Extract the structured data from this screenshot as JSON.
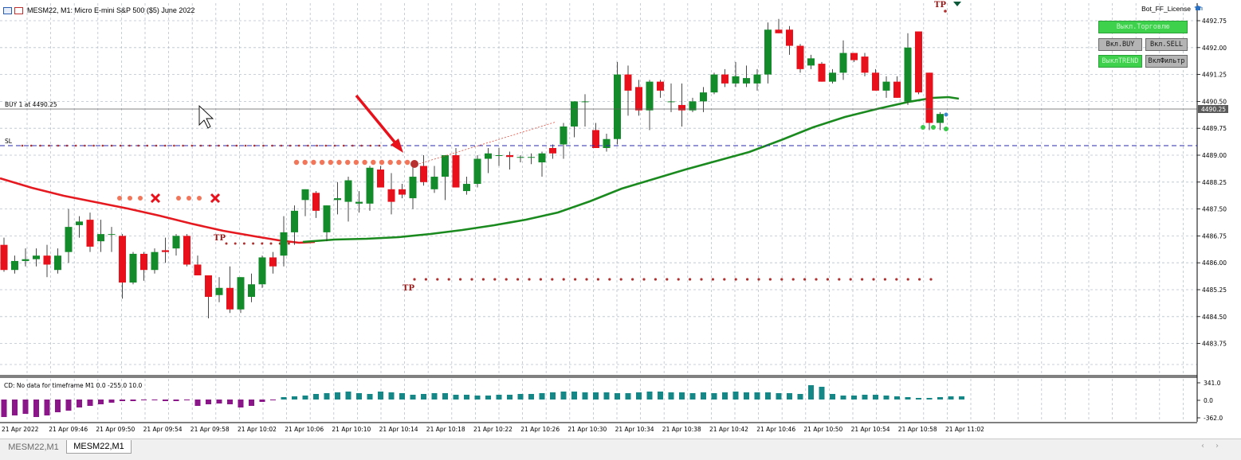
{
  "window": {
    "title": "MESM22, M1:  Micro E-mini S&P 500 ($5) June 2022"
  },
  "price_axis": {
    "labels": [
      "4492.75",
      "4492.00",
      "4491.25",
      "4490.50",
      "4489.75",
      "4489.00",
      "4488.25",
      "4487.50",
      "4486.75",
      "4486.00",
      "4485.25",
      "4484.50",
      "4483.75"
    ],
    "current_price": "4490.25"
  },
  "time_axis": {
    "labels": [
      "21 Apr 2022",
      "21 Apr 09:46",
      "21 Apr 09:50",
      "21 Apr 09:54",
      "21 Apr 09:58",
      "21 Apr 10:02",
      "21 Apr 10:06",
      "21 Apr 10:10",
      "21 Apr 10:14",
      "21 Apr 10:18",
      "21 Apr 10:22",
      "21 Apr 10:26",
      "21 Apr 10:30",
      "21 Apr 10:34",
      "21 Apr 10:38",
      "21 Apr 10:42",
      "21 Apr 10:46",
      "21 Apr 10:50",
      "21 Apr 10:54",
      "21 Apr 10:58",
      "21 Apr 11:02"
    ]
  },
  "trade_lines": {
    "buy_label": "BUY 1 at 4490.25",
    "sl_label": "SL",
    "tp_label": "TP"
  },
  "indicator": {
    "header": "CD: No data for timeframe M1 0.0 -255.0 10.0",
    "scale": [
      "341.0",
      "0.0",
      "-362.0"
    ]
  },
  "panel": {
    "license": "Bot_FF_License",
    "buttons": {
      "trade_off": "Выкл.Торговлю",
      "buy_on": "Вкл.BUY",
      "sell_on": "Вкл.SELL",
      "trend_off": "ВыклTREND",
      "filter_on": "ВклФильтр"
    }
  },
  "tabs": [
    "MESM22,M1",
    "MESM22,M1"
  ],
  "colors": {
    "bull": "#148b2b",
    "bear": "#e8101a",
    "grid": "#b8c2cc",
    "ma_red": "#e5191f",
    "ma_green": "#1a8a1f",
    "hist_pos": "#168787",
    "hist_neg": "#8a168a"
  },
  "chart_data": {
    "type": "candlestick",
    "candles": [
      {
        "o": 4486.5,
        "h": 4486.7,
        "l": 4485.75,
        "c": 4485.8
      },
      {
        "o": 4485.8,
        "h": 4486.2,
        "l": 4485.7,
        "c": 4486.05
      },
      {
        "o": 4486.05,
        "h": 4486.4,
        "l": 4485.9,
        "c": 4486.1
      },
      {
        "o": 4486.1,
        "h": 4486.4,
        "l": 4485.9,
        "c": 4486.2
      },
      {
        "o": 4486.2,
        "h": 4486.5,
        "l": 4485.6,
        "c": 4485.95
      },
      {
        "o": 4485.8,
        "h": 4486.4,
        "l": 4485.7,
        "c": 4486.2
      },
      {
        "o": 4486.3,
        "h": 4487.5,
        "l": 4486.0,
        "c": 4487.0
      },
      {
        "o": 4487.05,
        "h": 4487.3,
        "l": 4486.7,
        "c": 4487.15
      },
      {
        "o": 4487.2,
        "h": 4487.4,
        "l": 4486.3,
        "c": 4486.45
      },
      {
        "o": 4486.6,
        "h": 4487.2,
        "l": 4486.3,
        "c": 4486.8
      },
      {
        "o": 4486.8,
        "h": 4487.0,
        "l": 4486.3,
        "c": 4486.8
      },
      {
        "o": 4486.75,
        "h": 4486.8,
        "l": 4485.0,
        "c": 4485.45
      },
      {
        "o": 4485.45,
        "h": 4486.3,
        "l": 4485.4,
        "c": 4486.25
      },
      {
        "o": 4486.25,
        "h": 4486.3,
        "l": 4485.5,
        "c": 4485.8
      },
      {
        "o": 4485.8,
        "h": 4486.4,
        "l": 4485.7,
        "c": 4486.3
      },
      {
        "o": 4486.35,
        "h": 4486.7,
        "l": 4486.0,
        "c": 4486.3
      },
      {
        "o": 4486.4,
        "h": 4486.8,
        "l": 4486.2,
        "c": 4486.75
      },
      {
        "o": 4486.75,
        "h": 4486.8,
        "l": 4485.9,
        "c": 4485.95
      },
      {
        "o": 4485.95,
        "h": 4486.2,
        "l": 4485.65,
        "c": 4485.65
      },
      {
        "o": 4485.65,
        "h": 4485.65,
        "l": 4484.45,
        "c": 4485.05
      },
      {
        "o": 4485.1,
        "h": 4485.6,
        "l": 4484.9,
        "c": 4485.3
      },
      {
        "o": 4485.3,
        "h": 4485.9,
        "l": 4484.6,
        "c": 4484.7
      },
      {
        "o": 4484.7,
        "h": 4485.6,
        "l": 4484.6,
        "c": 4485.6
      },
      {
        "o": 4485.05,
        "h": 4485.7,
        "l": 4484.9,
        "c": 4485.4
      },
      {
        "o": 4485.4,
        "h": 4486.2,
        "l": 4485.3,
        "c": 4486.15
      },
      {
        "o": 4486.15,
        "h": 4486.3,
        "l": 4485.7,
        "c": 4485.9
      },
      {
        "o": 4486.2,
        "h": 4487.3,
        "l": 4485.9,
        "c": 4486.85
      },
      {
        "o": 4486.85,
        "h": 4487.6,
        "l": 4486.5,
        "c": 4487.45
      },
      {
        "o": 4487.75,
        "h": 4488.05,
        "l": 4487.3,
        "c": 4488.05
      },
      {
        "o": 4487.95,
        "h": 4488.0,
        "l": 4487.25,
        "c": 4487.45
      },
      {
        "o": 4486.85,
        "h": 4487.6,
        "l": 4486.6,
        "c": 4487.6
      },
      {
        "o": 4487.75,
        "h": 4488.25,
        "l": 4487.35,
        "c": 4487.8
      },
      {
        "o": 4487.7,
        "h": 4488.4,
        "l": 4487.15,
        "c": 4488.3
      },
      {
        "o": 4487.65,
        "h": 4488.0,
        "l": 4487.4,
        "c": 4487.7
      },
      {
        "o": 4487.65,
        "h": 4488.7,
        "l": 4487.45,
        "c": 4488.65
      },
      {
        "o": 4488.6,
        "h": 4488.7,
        "l": 4488.1,
        "c": 4488.1
      },
      {
        "o": 4488.05,
        "h": 4488.5,
        "l": 4487.35,
        "c": 4487.7
      },
      {
        "o": 4488.05,
        "h": 4488.2,
        "l": 4487.8,
        "c": 4487.9
      },
      {
        "o": 4487.8,
        "h": 4488.75,
        "l": 4487.5,
        "c": 4488.4
      },
      {
        "o": 4488.7,
        "h": 4489.0,
        "l": 4488.15,
        "c": 4488.25
      },
      {
        "o": 4488.05,
        "h": 4488.7,
        "l": 4487.95,
        "c": 4488.4
      },
      {
        "o": 4488.4,
        "h": 4489.0,
        "l": 4487.75,
        "c": 4489.0
      },
      {
        "o": 4489.0,
        "h": 4489.2,
        "l": 4488.1,
        "c": 4488.1
      },
      {
        "o": 4488.0,
        "h": 4488.4,
        "l": 4487.9,
        "c": 4488.2
      },
      {
        "o": 4488.2,
        "h": 4489.0,
        "l": 4488.1,
        "c": 4488.9
      },
      {
        "o": 4488.9,
        "h": 4489.2,
        "l": 4488.5,
        "c": 4489.05
      },
      {
        "o": 4489.0,
        "h": 4489.2,
        "l": 4488.7,
        "c": 4489.0
      },
      {
        "o": 4489.0,
        "h": 4489.1,
        "l": 4488.6,
        "c": 4488.95
      },
      {
        "o": 4488.95,
        "h": 4489.0,
        "l": 4488.8,
        "c": 4488.95
      },
      {
        "o": 4488.95,
        "h": 4489.05,
        "l": 4488.75,
        "c": 4488.95
      },
      {
        "o": 4488.8,
        "h": 4489.1,
        "l": 4488.4,
        "c": 4489.05
      },
      {
        "o": 4489.2,
        "h": 4489.3,
        "l": 4488.9,
        "c": 4489.05
      },
      {
        "o": 4489.3,
        "h": 4489.9,
        "l": 4488.9,
        "c": 4489.8
      },
      {
        "o": 4489.8,
        "h": 4490.5,
        "l": 4489.5,
        "c": 4490.5
      },
      {
        "o": 4490.5,
        "h": 4490.7,
        "l": 4489.8,
        "c": 4490.5
      },
      {
        "o": 4489.7,
        "h": 4489.9,
        "l": 4489.2,
        "c": 4489.2
      },
      {
        "o": 4489.2,
        "h": 4489.6,
        "l": 4489.1,
        "c": 4489.45
      },
      {
        "o": 4489.45,
        "h": 4491.6,
        "l": 4489.3,
        "c": 4491.25
      },
      {
        "o": 4491.25,
        "h": 4491.5,
        "l": 4490.1,
        "c": 4490.8
      },
      {
        "o": 4490.9,
        "h": 4491.1,
        "l": 4490.1,
        "c": 4490.25
      },
      {
        "o": 4490.25,
        "h": 4491.1,
        "l": 4489.7,
        "c": 4491.05
      },
      {
        "o": 4491.05,
        "h": 4491.1,
        "l": 4490.6,
        "c": 4490.8
      },
      {
        "o": 4490.5,
        "h": 4491.0,
        "l": 4490.2,
        "c": 4490.5
      },
      {
        "o": 4490.4,
        "h": 4491.0,
        "l": 4489.8,
        "c": 4490.25
      },
      {
        "o": 4490.25,
        "h": 4490.6,
        "l": 4490.2,
        "c": 4490.5
      },
      {
        "o": 4490.5,
        "h": 4490.9,
        "l": 4490.2,
        "c": 4490.75
      },
      {
        "o": 4490.75,
        "h": 4491.3,
        "l": 4490.7,
        "c": 4491.25
      },
      {
        "o": 4491.25,
        "h": 4491.4,
        "l": 4490.9,
        "c": 4491.0
      },
      {
        "o": 4491.0,
        "h": 4491.6,
        "l": 4490.9,
        "c": 4491.2
      },
      {
        "o": 4491.0,
        "h": 4491.5,
        "l": 4490.9,
        "c": 4491.15
      },
      {
        "o": 4491.0,
        "h": 4491.4,
        "l": 4490.8,
        "c": 4491.25
      },
      {
        "o": 4491.25,
        "h": 4492.7,
        "l": 4491.0,
        "c": 4492.5
      },
      {
        "o": 4492.5,
        "h": 4492.8,
        "l": 4492.4,
        "c": 4492.4
      },
      {
        "o": 4492.5,
        "h": 4492.6,
        "l": 4491.8,
        "c": 4492.05
      },
      {
        "o": 4492.05,
        "h": 4492.1,
        "l": 4491.3,
        "c": 4491.4
      },
      {
        "o": 4491.5,
        "h": 4491.8,
        "l": 4491.4,
        "c": 4491.7
      },
      {
        "o": 4491.55,
        "h": 4491.6,
        "l": 4491.05,
        "c": 4491.05
      },
      {
        "o": 4491.05,
        "h": 4491.4,
        "l": 4491.0,
        "c": 4491.3
      },
      {
        "o": 4491.3,
        "h": 4492.2,
        "l": 4491.1,
        "c": 4491.85
      },
      {
        "o": 4491.85,
        "h": 4491.85,
        "l": 4491.6,
        "c": 4491.65
      },
      {
        "o": 4491.75,
        "h": 4491.85,
        "l": 4491.2,
        "c": 4491.3
      },
      {
        "o": 4491.3,
        "h": 4491.4,
        "l": 4490.8,
        "c": 4490.8
      },
      {
        "o": 4490.8,
        "h": 4491.2,
        "l": 4490.6,
        "c": 4491.05
      },
      {
        "o": 4491.05,
        "h": 4491.2,
        "l": 4490.6,
        "c": 4490.6
      },
      {
        "o": 4490.5,
        "h": 4492.4,
        "l": 4490.4,
        "c": 4492.0
      },
      {
        "o": 4492.45,
        "h": 4492.45,
        "l": 4490.7,
        "c": 4490.75
      },
      {
        "o": 4491.3,
        "h": 4491.3,
        "l": 4489.7,
        "c": 4489.9
      },
      {
        "o": 4489.9,
        "h": 4490.2,
        "l": 4489.7,
        "c": 4490.15
      }
    ]
  }
}
